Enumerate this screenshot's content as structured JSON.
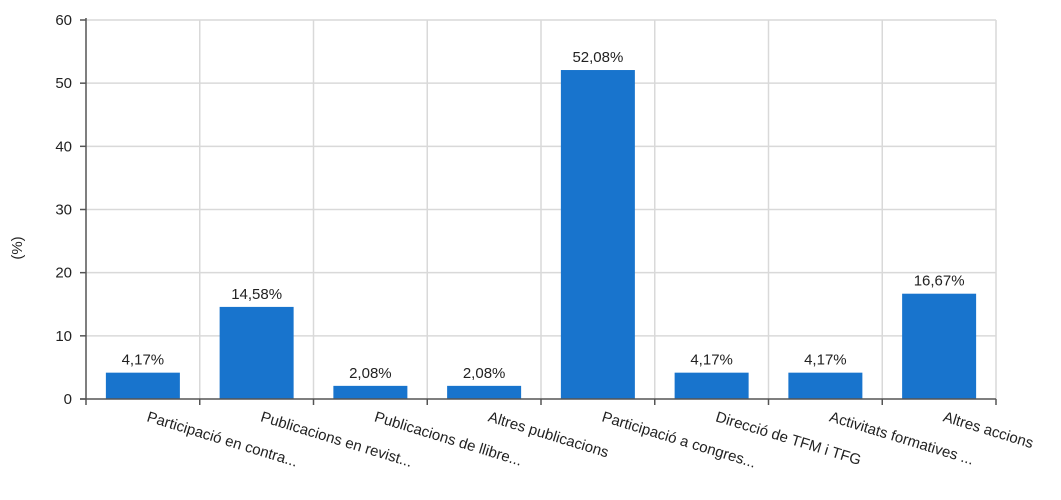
{
  "chart_data": {
    "type": "bar",
    "title": "",
    "xlabel": "",
    "ylabel": "(%)",
    "ylim": [
      0,
      60
    ],
    "yticks": [
      0,
      10,
      20,
      30,
      40,
      50,
      60
    ],
    "grid": true,
    "categories": [
      "Participació en contra...",
      "Publicacions en revist...",
      "Publicacions de llibre...",
      "Altres publicacions",
      "Participació a congres...",
      "Direcció de TFM i TFG",
      "Activitats formatives ...",
      "Altres accions"
    ],
    "values": [
      4.17,
      14.58,
      2.08,
      2.08,
      52.08,
      4.17,
      4.17,
      16.67
    ],
    "value_labels": [
      "4,17%",
      "14,58%",
      "2,08%",
      "2,08%",
      "52,08%",
      "4,17%",
      "4,17%",
      "16,67%"
    ],
    "bar_color": "#1874cd",
    "grid_color": "#d9d9d9"
  }
}
